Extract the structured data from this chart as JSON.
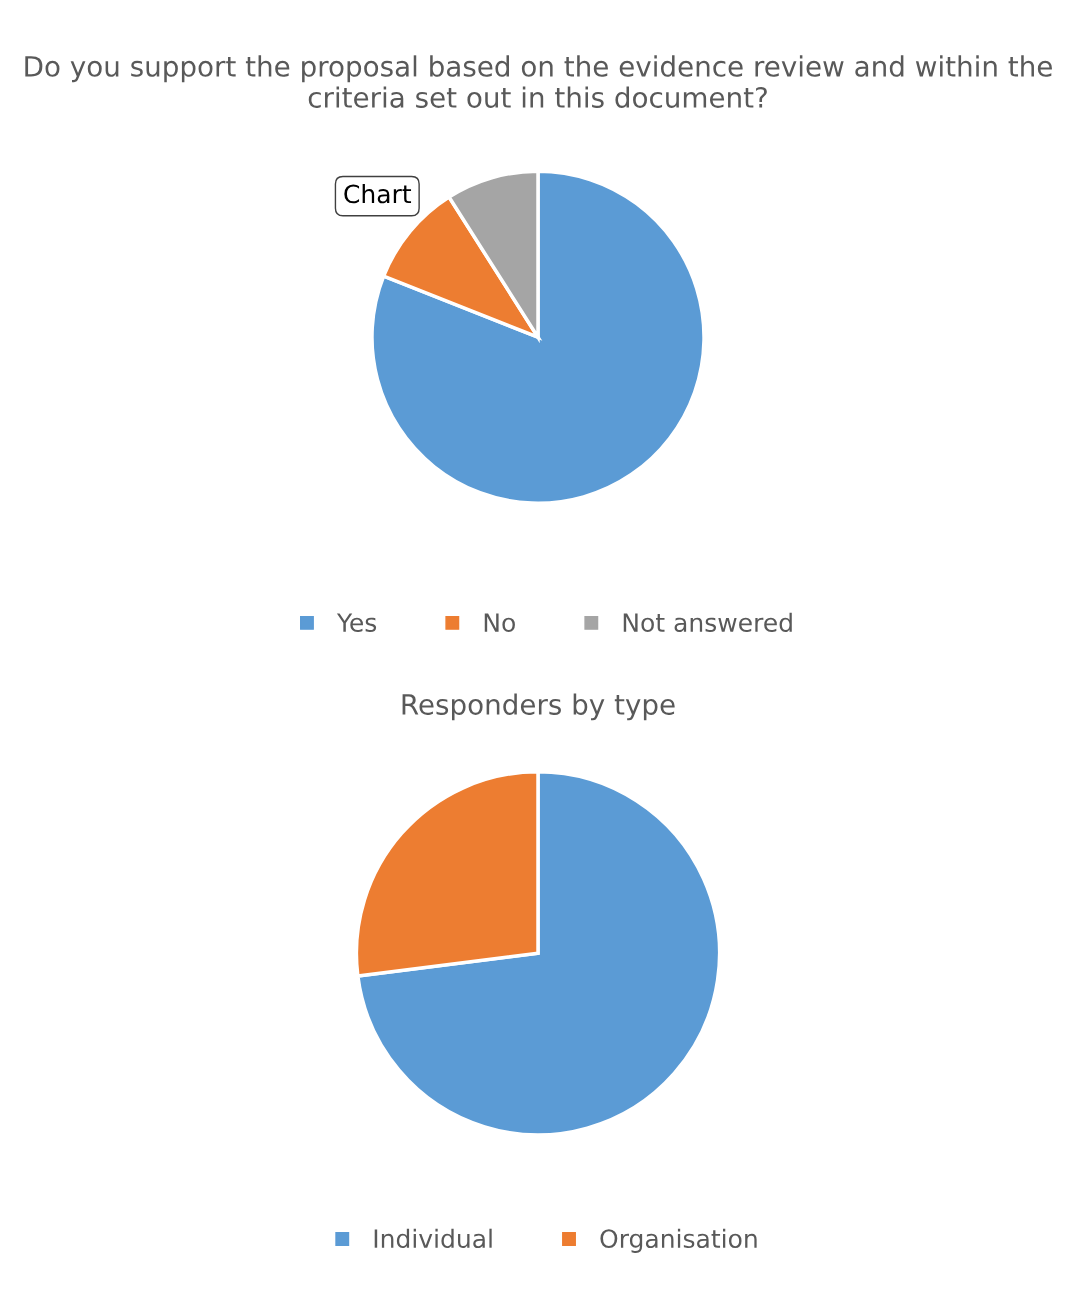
{
  "chart_data": [
    {
      "type": "pie",
      "title": "Do you support the proposal based on the evidence review and within the criteria set out in this document?",
      "categories": [
        "Yes",
        "No",
        "Not answered"
      ],
      "values": [
        81,
        10,
        9
      ],
      "colors": [
        "#5b9bd5",
        "#ed7d31",
        "#a5a5a5"
      ],
      "legend": "bottom",
      "annotations": [
        "Chart"
      ]
    },
    {
      "type": "pie",
      "title": "Responders by type",
      "categories": [
        "Individual",
        "Organisation"
      ],
      "values": [
        73,
        27
      ],
      "colors": [
        "#5b9bd5",
        "#ed7d31"
      ],
      "legend": "bottom"
    }
  ]
}
